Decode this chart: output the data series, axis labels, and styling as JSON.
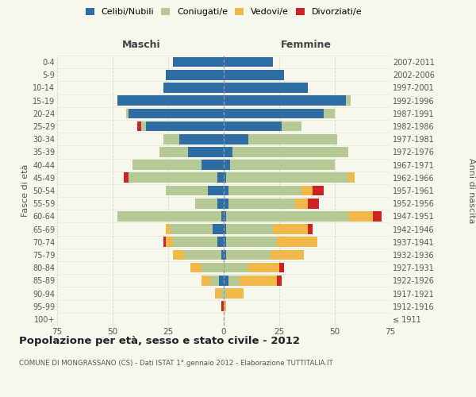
{
  "age_groups": [
    "100+",
    "95-99",
    "90-94",
    "85-89",
    "80-84",
    "75-79",
    "70-74",
    "65-69",
    "60-64",
    "55-59",
    "50-54",
    "45-49",
    "40-44",
    "35-39",
    "30-34",
    "25-29",
    "20-24",
    "15-19",
    "10-14",
    "5-9",
    "0-4"
  ],
  "birth_years": [
    "≤ 1911",
    "1912-1916",
    "1917-1921",
    "1922-1926",
    "1927-1931",
    "1932-1936",
    "1937-1941",
    "1942-1946",
    "1947-1951",
    "1952-1956",
    "1957-1961",
    "1962-1966",
    "1967-1971",
    "1972-1976",
    "1977-1981",
    "1982-1986",
    "1987-1991",
    "1992-1996",
    "1997-2001",
    "2002-2006",
    "2007-2011"
  ],
  "colors": {
    "celibe": "#2e6da4",
    "coniugato": "#b5c994",
    "vedovo": "#f0b849",
    "divorziato": "#cc2222"
  },
  "maschi": {
    "celibe": [
      0,
      0,
      0,
      2,
      0,
      1,
      3,
      5,
      1,
      3,
      7,
      3,
      10,
      16,
      20,
      35,
      43,
      48,
      27,
      26,
      23
    ],
    "coniugato": [
      0,
      0,
      1,
      4,
      10,
      17,
      20,
      19,
      47,
      10,
      19,
      40,
      31,
      13,
      7,
      2,
      1,
      0,
      0,
      0,
      0
    ],
    "vedovo": [
      0,
      0,
      3,
      4,
      5,
      5,
      3,
      2,
      0,
      0,
      0,
      0,
      0,
      0,
      0,
      0,
      0,
      0,
      0,
      0,
      0
    ],
    "divorziato": [
      0,
      1,
      0,
      0,
      0,
      0,
      1,
      0,
      0,
      0,
      0,
      2,
      0,
      0,
      0,
      2,
      0,
      0,
      0,
      0,
      0
    ]
  },
  "femmine": {
    "celibe": [
      0,
      0,
      0,
      2,
      0,
      1,
      1,
      1,
      1,
      2,
      2,
      1,
      3,
      4,
      11,
      26,
      45,
      55,
      38,
      27,
      22
    ],
    "coniugato": [
      0,
      0,
      1,
      5,
      11,
      20,
      23,
      21,
      55,
      30,
      33,
      55,
      47,
      52,
      40,
      9,
      5,
      2,
      0,
      0,
      0
    ],
    "vedovo": [
      0,
      1,
      8,
      17,
      14,
      15,
      18,
      16,
      11,
      6,
      5,
      3,
      0,
      0,
      0,
      0,
      0,
      0,
      0,
      0,
      0
    ],
    "divorziato": [
      0,
      0,
      0,
      2,
      2,
      0,
      0,
      2,
      4,
      5,
      5,
      0,
      0,
      0,
      0,
      0,
      0,
      0,
      0,
      0,
      0
    ]
  },
  "xlim": 75,
  "title": "Popolazione per età, sesso e stato civile - 2012",
  "subtitle": "COMUNE DI MONGRASSANO (CS) - Dati ISTAT 1° gennaio 2012 - Elaborazione TUTTITALIA.IT",
  "ylabel_left": "Fasce di età",
  "ylabel_right": "Anni di nascita",
  "xlabel_left": "Maschi",
  "xlabel_right": "Femmine",
  "legend_labels": [
    "Celibi/Nubili",
    "Coniugati/e",
    "Vedovi/e",
    "Divorziati/e"
  ],
  "bg_color": "#f7f7ee",
  "grid_color": "#cccccc"
}
